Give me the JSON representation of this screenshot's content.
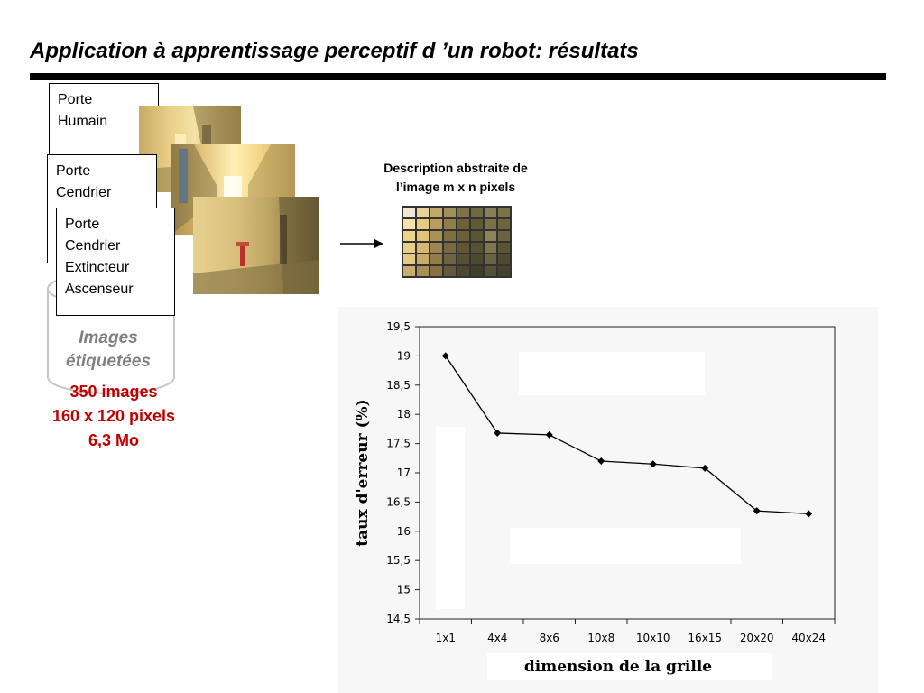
{
  "slide": {
    "title": "Application à apprentissage perceptif d ’un robot: résultats"
  },
  "cards": [
    {
      "lines": [
        "Porte",
        "Humain"
      ]
    },
    {
      "lines": [
        "Porte",
        "Cendrier"
      ]
    },
    {
      "lines": [
        "Porte",
        "Cendrier",
        "Extincteur",
        "Ascenseur"
      ]
    }
  ],
  "database": {
    "label_line1": "Images",
    "label_line2": "étiquetées",
    "count": "350 images",
    "size": "160 x 120 pixels",
    "weight": "6,3 Mo"
  },
  "description": {
    "line1": "Description abstraite de",
    "line2": "l’image  m x n pixels"
  },
  "grid_colors": [
    [
      "#efe7d3",
      "#e8d49a",
      "#bfa86a",
      "#a28e57",
      "#7e7248",
      "#6f6942",
      "#868055",
      "#7b7346"
    ],
    [
      "#f1e2b0",
      "#e5cc83",
      "#b89e5e",
      "#8f7d4b",
      "#6c6238",
      "#5e5a34",
      "#787249",
      "#6d6540"
    ],
    [
      "#ecd58a",
      "#e1c47a",
      "#a99254",
      "#7f6e41",
      "#6a5f37",
      "#5b5632",
      "#8a845c",
      "#6b6440"
    ],
    [
      "#e9d089",
      "#d6b873",
      "#9d8650",
      "#786a3f",
      "#605633",
      "#565232",
      "#7d774f",
      "#5a5533"
    ],
    [
      "#e4ca84",
      "#c9ab6a",
      "#927c49",
      "#6f6340",
      "#575032",
      "#4b4a2e",
      "#686343",
      "#4e4b30"
    ],
    [
      "#c7ae6e",
      "#a98e57",
      "#86713f",
      "#65583a",
      "#4d4730",
      "#3f3f2a",
      "#55523a",
      "#45432e"
    ]
  ],
  "chart_data": {
    "type": "line",
    "categories": [
      "1x1",
      "4x4",
      "8x6",
      "10x8",
      "10x10",
      "16x15",
      "20x20",
      "40x24"
    ],
    "series": [
      {
        "values": [
          19.0,
          17.68,
          17.65,
          17.2,
          17.15,
          17.08,
          16.35,
          16.3
        ]
      }
    ],
    "xlabel": "dimension de la grille",
    "ylabel": "taux d'erreur (%)",
    "ylim": [
      14.5,
      19.5
    ],
    "yticks": [
      "19,5",
      "19",
      "18,5",
      "18",
      "17,5",
      "17",
      "16,5",
      "16",
      "15,5",
      "15",
      "14,5"
    ],
    "grid": false,
    "line_color": "#000000"
  }
}
